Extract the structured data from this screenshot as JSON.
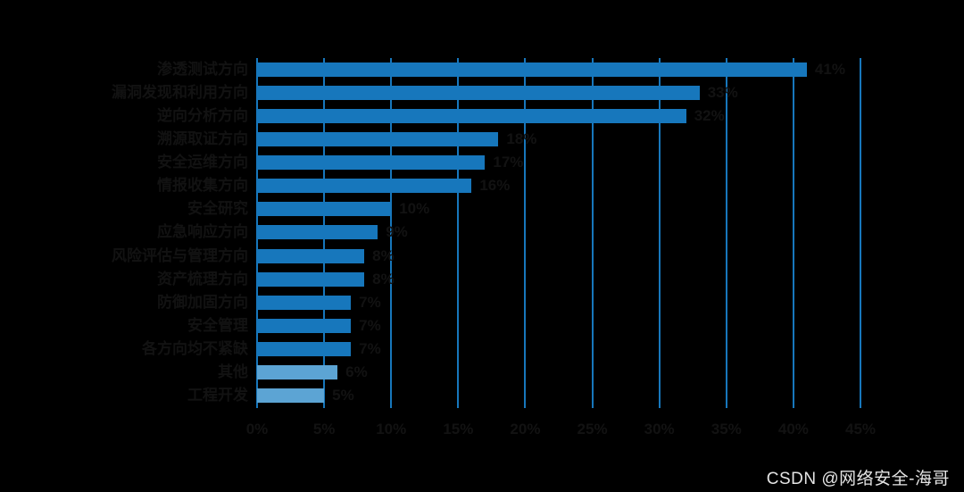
{
  "watermark": "CSDN @网络安全-海哥",
  "colors": {
    "background": "#000000",
    "bar": "#1777bc",
    "bar_light": "#5ca4d4",
    "grid": "#1777bc",
    "text": "#121212",
    "watermark_text": "#e4e4e4"
  },
  "chart_data": {
    "type": "bar",
    "orientation": "horizontal",
    "title": "",
    "xlabel": "",
    "ylabel": "",
    "xlim": [
      0,
      45
    ],
    "grid": true,
    "x_ticks": [
      "0%",
      "5%",
      "10%",
      "15%",
      "20%",
      "25%",
      "30%",
      "35%",
      "40%",
      "45%"
    ],
    "x_tick_values": [
      0,
      5,
      10,
      15,
      20,
      25,
      30,
      35,
      40,
      45
    ],
    "categories": [
      "渗透测试方向",
      "漏洞发现和利用方向",
      "逆向分析方向",
      "溯源取证方向",
      "安全运维方向",
      "情报收集方向",
      "安全研究",
      "应急响应方向",
      "风险评估与管理方向",
      "资产梳理方向",
      "防御加固方向",
      "安全管理",
      "各方向均不紧缺",
      "其他",
      "工程开发"
    ],
    "values": [
      41,
      33,
      32,
      18,
      17,
      16,
      10,
      9,
      8,
      8,
      7,
      7,
      7,
      6,
      5
    ],
    "value_labels": [
      "41%",
      "33%",
      "32%",
      "18%",
      "17%",
      "16%",
      "10%",
      "9%",
      "8%",
      "8%",
      "7%",
      "7%",
      "7%",
      "6%",
      "5%"
    ],
    "light_row_indexes": [
      13,
      14
    ]
  }
}
